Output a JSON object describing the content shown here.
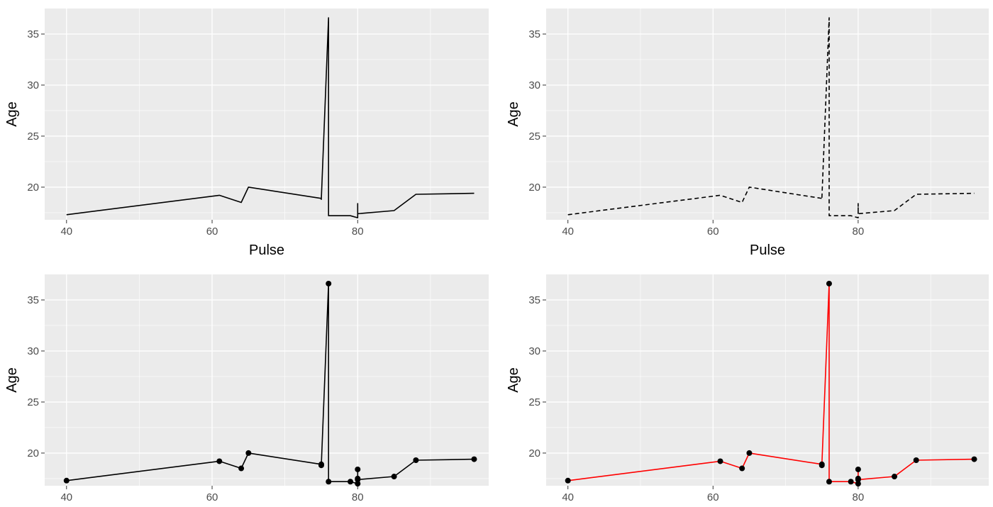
{
  "chart_data": [
    {
      "type": "line",
      "xlabel": "Pulse",
      "ylabel": "Age",
      "xlim": [
        37,
        98
      ],
      "ylim": [
        16.8,
        37.5
      ],
      "xticks": [
        40,
        60,
        80
      ],
      "yticks": [
        20,
        25,
        30,
        35
      ],
      "grid": true,
      "line_style": "solid",
      "line_color": "#000000",
      "markers": false,
      "series": [
        {
          "x": [
            40,
            61,
            64,
            65,
            75,
            75,
            76,
            76,
            79,
            80,
            80,
            80,
            80,
            85,
            88,
            96
          ],
          "y": [
            17.3,
            19.2,
            18.5,
            20.0,
            18.9,
            18.8,
            36.6,
            17.2,
            17.2,
            17.0,
            18.4,
            17.5,
            17.4,
            17.7,
            19.3,
            19.4
          ]
        }
      ]
    },
    {
      "type": "line",
      "xlabel": "Pulse",
      "ylabel": "Age",
      "xlim": [
        37,
        98
      ],
      "ylim": [
        16.8,
        37.5
      ],
      "xticks": [
        40,
        60,
        80
      ],
      "yticks": [
        20,
        25,
        30,
        35
      ],
      "grid": true,
      "line_style": "dashed",
      "line_color": "#000000",
      "markers": false,
      "series": [
        {
          "x": [
            40,
            61,
            64,
            65,
            75,
            75,
            76,
            76,
            79,
            80,
            80,
            80,
            80,
            85,
            88,
            96
          ],
          "y": [
            17.3,
            19.2,
            18.5,
            20.0,
            18.9,
            18.8,
            36.6,
            17.2,
            17.2,
            17.0,
            18.4,
            17.5,
            17.4,
            17.7,
            19.3,
            19.4
          ]
        }
      ]
    },
    {
      "type": "line",
      "xlabel": "",
      "ylabel": "Age",
      "xlim": [
        37,
        98
      ],
      "ylim": [
        16.8,
        37.5
      ],
      "xticks": [
        40,
        60,
        80
      ],
      "yticks": [
        20,
        25,
        30,
        35
      ],
      "grid": true,
      "line_style": "solid",
      "line_color": "#000000",
      "markers": true,
      "series": [
        {
          "x": [
            40,
            61,
            64,
            65,
            75,
            75,
            76,
            76,
            79,
            80,
            80,
            80,
            80,
            85,
            88,
            96
          ],
          "y": [
            17.3,
            19.2,
            18.5,
            20.0,
            18.9,
            18.8,
            36.6,
            17.2,
            17.2,
            17.0,
            18.4,
            17.5,
            17.4,
            17.7,
            19.3,
            19.4
          ]
        }
      ]
    },
    {
      "type": "line",
      "xlabel": "",
      "ylabel": "Age",
      "xlim": [
        37,
        98
      ],
      "ylim": [
        16.8,
        37.5
      ],
      "xticks": [
        40,
        60,
        80
      ],
      "yticks": [
        20,
        25,
        30,
        35
      ],
      "grid": true,
      "line_style": "solid",
      "line_color": "#ff0000",
      "markers": true,
      "series": [
        {
          "x": [
            40,
            61,
            64,
            65,
            75,
            75,
            76,
            76,
            79,
            80,
            80,
            80,
            80,
            85,
            88,
            96
          ],
          "y": [
            17.3,
            19.2,
            18.5,
            20.0,
            18.9,
            18.8,
            36.6,
            17.2,
            17.2,
            17.0,
            18.4,
            17.5,
            17.4,
            17.7,
            19.3,
            19.4
          ]
        }
      ]
    }
  ]
}
